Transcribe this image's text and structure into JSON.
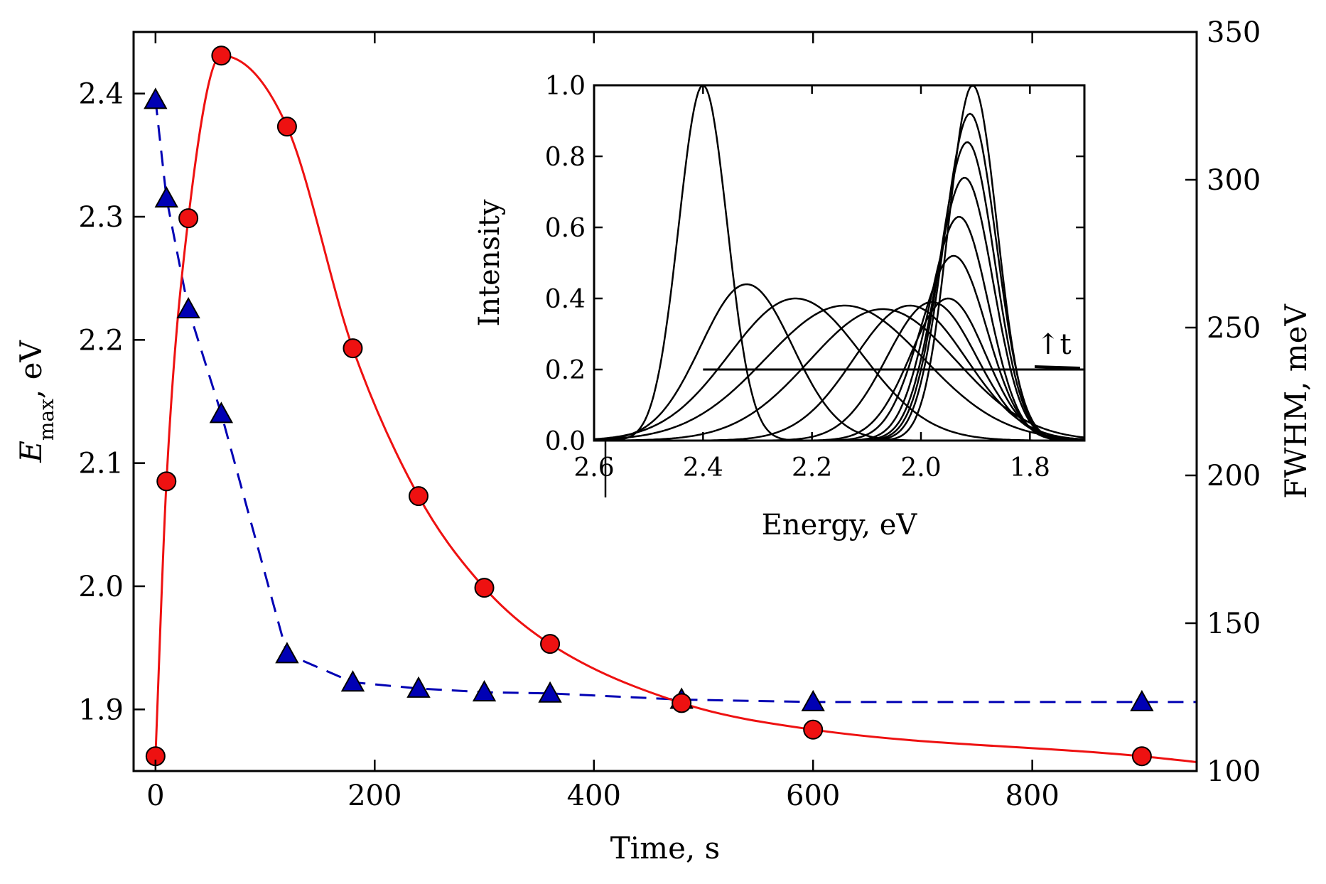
{
  "chart_data": [
    {
      "type": "scatter",
      "title": "",
      "xlabel": "Time, s",
      "ylabel_left": "E",
      "ylabel_left_subscript": "max",
      "ylabel_left_suffix": ", eV",
      "ylabel_right": "FWHM, meV",
      "xlim": [
        -20,
        950
      ],
      "ylim_left": [
        1.85,
        2.45
      ],
      "ylim_right": [
        100,
        350
      ],
      "x_ticks": [
        "0",
        "200",
        "400",
        "600",
        "800"
      ],
      "y_left_ticks": [
        "1.9",
        "2.0",
        "2.1",
        "2.2",
        "2.3",
        "2.4"
      ],
      "y_right_ticks": [
        "100",
        "150",
        "200",
        "250",
        "300",
        "350"
      ],
      "grid": false,
      "series": [
        {
          "name": "E_max",
          "axis": "left",
          "marker": "triangle",
          "color": "#0000b4",
          "line_style": "dashed",
          "x": [
            0,
            10,
            30,
            60,
            120,
            180,
            240,
            300,
            360,
            480,
            600,
            900
          ],
          "y": [
            2.395,
            2.315,
            2.225,
            2.14,
            1.945,
            1.922,
            1.917,
            1.914,
            1.913,
            1.908,
            1.906,
            1.906
          ]
        },
        {
          "name": "FWHM",
          "axis": "right",
          "marker": "circle",
          "color": "#ee1111",
          "line_style": "solid-fit",
          "x": [
            0,
            10,
            30,
            60,
            120,
            180,
            240,
            300,
            360,
            480,
            600,
            900
          ],
          "y": [
            105,
            198,
            287,
            342,
            318,
            243,
            193,
            162,
            143,
            123,
            114,
            105
          ]
        }
      ]
    },
    {
      "type": "line",
      "title": "",
      "xlabel": "Energy, eV",
      "ylabel": "Intensity",
      "xlim": [
        2.6,
        1.7
      ],
      "ylim": [
        0,
        1.0
      ],
      "x_ticks": [
        "2.6",
        "2.4",
        "2.2",
        "2.0",
        "1.8"
      ],
      "y_ticks": [
        "0.0",
        "0.2",
        "0.4",
        "0.6",
        "0.8",
        "1.0"
      ],
      "annotation": "↑t",
      "baseline_level": 0.2,
      "series": [
        {
          "center": 2.4,
          "amplitude": 1.0,
          "fwhm": 0.105
        },
        {
          "center": 2.32,
          "amplitude": 0.44,
          "fwhm": 0.198
        },
        {
          "center": 2.23,
          "amplitude": 0.4,
          "fwhm": 0.287
        },
        {
          "center": 2.14,
          "amplitude": 0.38,
          "fwhm": 0.342
        },
        {
          "center": 2.07,
          "amplitude": 0.37,
          "fwhm": 0.318
        },
        {
          "center": 2.02,
          "amplitude": 0.38,
          "fwhm": 0.243
        },
        {
          "center": 1.98,
          "amplitude": 0.39,
          "fwhm": 0.193
        },
        {
          "center": 1.95,
          "amplitude": 0.4,
          "fwhm": 0.162
        },
        {
          "center": 1.94,
          "amplitude": 0.52,
          "fwhm": 0.143
        },
        {
          "center": 1.93,
          "amplitude": 0.63,
          "fwhm": 0.128
        },
        {
          "center": 1.92,
          "amplitude": 0.74,
          "fwhm": 0.123
        },
        {
          "center": 1.915,
          "amplitude": 0.84,
          "fwhm": 0.118
        },
        {
          "center": 1.91,
          "amplitude": 0.92,
          "fwhm": 0.114
        },
        {
          "center": 1.905,
          "amplitude": 1.0,
          "fwhm": 0.105
        }
      ]
    }
  ]
}
